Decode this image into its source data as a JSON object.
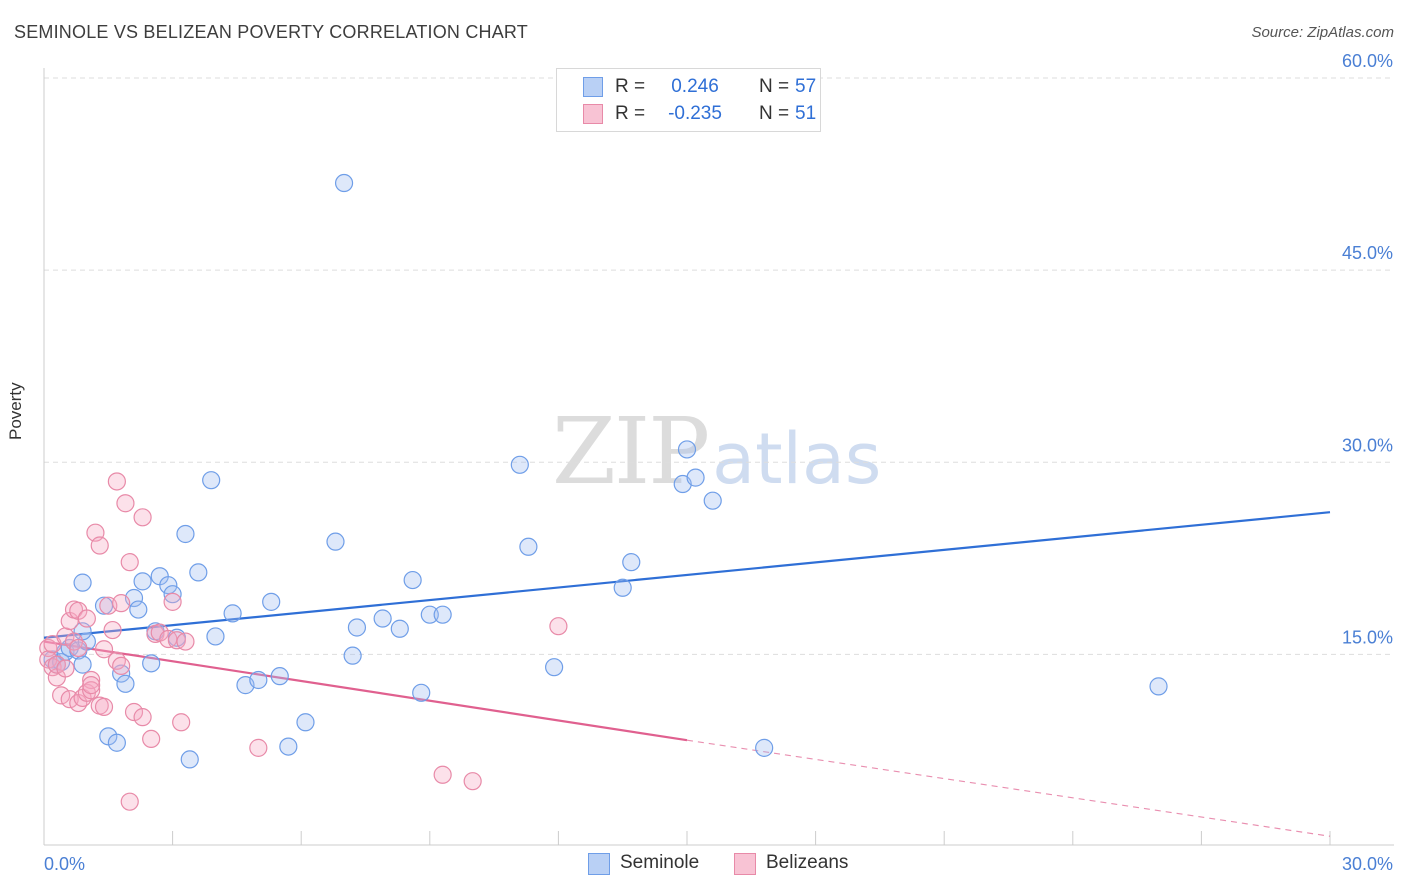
{
  "header": {
    "title": "SEMINOLE VS BELIZEAN POVERTY CORRELATION CHART",
    "source": "Source: ZipAtlas.com"
  },
  "watermark": {
    "part1": "ZIP",
    "part2": "atlas"
  },
  "legend": {
    "rows": [
      {
        "r_label": "R =",
        "r_value": "0.246",
        "n_label": "N =",
        "n_value": "57",
        "color": "#6f9ee8",
        "fill": "#b9d0f5"
      },
      {
        "r_label": "R =",
        "r_value": "-0.235",
        "n_label": "N =",
        "n_value": "51",
        "color": "#e88aa8",
        "fill": "#f8c3d4"
      }
    ]
  },
  "colors": {
    "seminole_stroke": "#6f9ee8",
    "seminole_fill": "rgba(160,190,240,0.35)",
    "seminole_line": "#2f6fd6",
    "belizean_stroke": "#e88aa8",
    "belizean_fill": "rgba(245,170,195,0.35)",
    "belizean_line": "#e0608f",
    "grid": "#dddddd",
    "axis_text": "#4a7fd4"
  },
  "chart_data": {
    "type": "scatter",
    "title": "SEMINOLE VS BELIZEAN POVERTY CORRELATION CHART",
    "xlabel": "",
    "ylabel": "Poverty",
    "xlim": [
      0,
      30
    ],
    "ylim": [
      0,
      60
    ],
    "x_tick_labels": [
      "0.0%",
      "30.0%"
    ],
    "y_ticks": [
      15,
      30,
      45,
      60
    ],
    "y_tick_labels": [
      "15.0%",
      "30.0%",
      "45.0%",
      "60.0%"
    ],
    "legend": [
      "Seminole",
      "Belizeans"
    ],
    "series": [
      {
        "name": "Seminole",
        "r": 0.246,
        "n": 57,
        "trend": {
          "x0": 0,
          "y0": 16.3,
          "x1": 30,
          "y1": 26.1
        },
        "points": [
          [
            0.2,
            14.6
          ],
          [
            0.3,
            14.2
          ],
          [
            0.4,
            14.4
          ],
          [
            0.5,
            15.2
          ],
          [
            0.6,
            15.5
          ],
          [
            0.8,
            15.3
          ],
          [
            0.9,
            14.2
          ],
          [
            1.0,
            16.0
          ],
          [
            0.9,
            16.8
          ],
          [
            0.9,
            20.6
          ],
          [
            1.4,
            18.8
          ],
          [
            1.5,
            8.6
          ],
          [
            1.7,
            8.1
          ],
          [
            1.8,
            13.5
          ],
          [
            1.9,
            12.7
          ],
          [
            2.1,
            19.4
          ],
          [
            2.2,
            18.5
          ],
          [
            2.3,
            20.7
          ],
          [
            2.5,
            14.3
          ],
          [
            2.6,
            16.8
          ],
          [
            2.7,
            21.1
          ],
          [
            2.9,
            20.4
          ],
          [
            3.0,
            19.7
          ],
          [
            3.1,
            16.3
          ],
          [
            3.3,
            24.4
          ],
          [
            3.4,
            6.8
          ],
          [
            3.6,
            21.4
          ],
          [
            3.9,
            28.6
          ],
          [
            4.0,
            16.4
          ],
          [
            4.4,
            18.2
          ],
          [
            4.7,
            12.6
          ],
          [
            5.0,
            13.0
          ],
          [
            5.3,
            19.1
          ],
          [
            5.5,
            13.3
          ],
          [
            5.7,
            7.8
          ],
          [
            6.1,
            9.7
          ],
          [
            6.8,
            23.8
          ],
          [
            7.0,
            51.8
          ],
          [
            7.2,
            14.9
          ],
          [
            7.3,
            17.1
          ],
          [
            7.9,
            17.8
          ],
          [
            8.3,
            17.0
          ],
          [
            8.6,
            20.8
          ],
          [
            8.8,
            12.0
          ],
          [
            9.0,
            18.1
          ],
          [
            9.3,
            18.1
          ],
          [
            11.1,
            29.8
          ],
          [
            11.3,
            23.4
          ],
          [
            11.9,
            14.0
          ],
          [
            13.5,
            20.2
          ],
          [
            13.7,
            22.2
          ],
          [
            14.9,
            28.3
          ],
          [
            15.0,
            31.0
          ],
          [
            15.2,
            28.8
          ],
          [
            15.6,
            27.0
          ],
          [
            16.8,
            7.7
          ],
          [
            26.0,
            12.5
          ]
        ]
      },
      {
        "name": "Belizeans",
        "r": -0.235,
        "n": 51,
        "trend": {
          "x0": 0,
          "y0": 16.0,
          "x1": 15.0,
          "y1": 8.3,
          "dash_to_x": 30,
          "dash_to_y": 0.8
        },
        "points": [
          [
            0.1,
            15.5
          ],
          [
            0.1,
            14.6
          ],
          [
            0.2,
            14.0
          ],
          [
            0.2,
            15.8
          ],
          [
            0.3,
            13.2
          ],
          [
            0.3,
            14.2
          ],
          [
            0.4,
            11.8
          ],
          [
            0.5,
            16.4
          ],
          [
            0.5,
            13.9
          ],
          [
            0.6,
            17.6
          ],
          [
            0.6,
            11.5
          ],
          [
            0.7,
            16.0
          ],
          [
            0.7,
            18.5
          ],
          [
            0.8,
            18.4
          ],
          [
            0.8,
            15.5
          ],
          [
            0.8,
            11.2
          ],
          [
            0.9,
            11.6
          ],
          [
            1.0,
            17.8
          ],
          [
            1.0,
            12.0
          ],
          [
            1.1,
            13.0
          ],
          [
            1.1,
            12.2
          ],
          [
            1.1,
            12.6
          ],
          [
            1.2,
            24.5
          ],
          [
            1.3,
            23.5
          ],
          [
            1.3,
            11.0
          ],
          [
            1.4,
            10.9
          ],
          [
            1.4,
            15.4
          ],
          [
            1.5,
            18.8
          ],
          [
            1.6,
            16.9
          ],
          [
            1.7,
            28.5
          ],
          [
            1.7,
            14.5
          ],
          [
            1.8,
            19.0
          ],
          [
            1.8,
            14.1
          ],
          [
            1.9,
            26.8
          ],
          [
            2.0,
            22.2
          ],
          [
            2.0,
            3.5
          ],
          [
            2.1,
            10.5
          ],
          [
            2.3,
            25.7
          ],
          [
            2.3,
            10.1
          ],
          [
            2.5,
            8.4
          ],
          [
            2.6,
            16.6
          ],
          [
            2.7,
            16.7
          ],
          [
            2.9,
            16.2
          ],
          [
            3.0,
            19.1
          ],
          [
            3.1,
            16.1
          ],
          [
            3.2,
            9.7
          ],
          [
            3.3,
            16.0
          ],
          [
            5.0,
            7.7
          ],
          [
            9.3,
            5.6
          ],
          [
            10.0,
            5.1
          ],
          [
            12.0,
            17.2
          ]
        ]
      }
    ]
  },
  "bottom_legend": [
    {
      "label": "Seminole"
    },
    {
      "label": "Belizeans"
    }
  ]
}
